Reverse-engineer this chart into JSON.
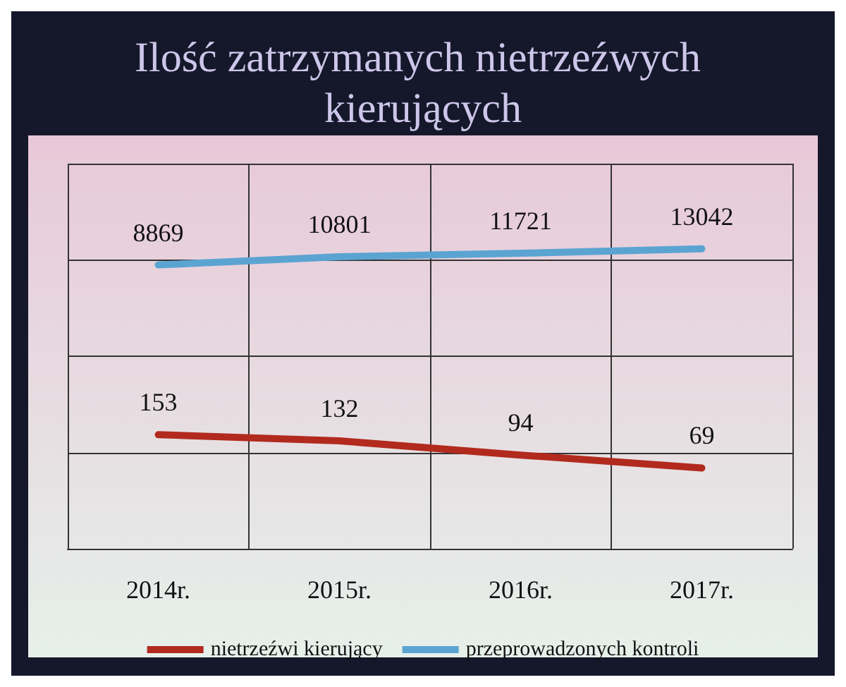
{
  "chart_data": {
    "type": "line",
    "title": "Ilość zatrzymanych nietrzeźwych kierujących",
    "categories": [
      "2014r.",
      "2015r.",
      "2016r.",
      "2017r."
    ],
    "series": [
      {
        "name": "nietrzeźwi kierujący",
        "color": "#b22a1e",
        "values": [
          153,
          132,
          94,
          69
        ]
      },
      {
        "name": "przeprowadzonych kontroli",
        "color": "#5ba4d2",
        "values": [
          8869,
          10801,
          11721,
          13042
        ]
      }
    ],
    "log": true,
    "data_labels": true,
    "grid": true,
    "legend": "bottom",
    "marker": "none",
    "tick_labels": "x"
  }
}
